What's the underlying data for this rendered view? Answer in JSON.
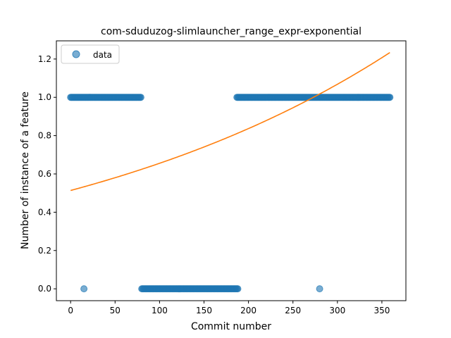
{
  "chart_data": {
    "type": "scatter",
    "title": "com-sduduzog-slimlauncher_range_expr-exponential",
    "xlabel": "Commit number",
    "ylabel": "Number of instance of a feature",
    "xlim": [
      -16,
      377
    ],
    "ylim": [
      -0.062,
      1.295
    ],
    "xticks": [
      0,
      50,
      100,
      150,
      200,
      250,
      300,
      350
    ],
    "yticks": [
      0.0,
      0.2,
      0.4,
      0.6,
      0.8,
      1.0,
      1.2
    ],
    "xtick_labels": [
      "0",
      "50",
      "100",
      "150",
      "200",
      "250",
      "300",
      "350"
    ],
    "ytick_labels": [
      "0.0",
      "0.2",
      "0.4",
      "0.6",
      "0.8",
      "1.0",
      "1.2"
    ],
    "grid": false,
    "legend": {
      "position": "top-left",
      "entries": [
        "data"
      ]
    },
    "colors": {
      "data": "#1f77b4",
      "fit": "#ff7f0e"
    },
    "series": [
      {
        "name": "data",
        "kind": "points",
        "segments": [
          {
            "x_start": 0,
            "x_end": 79,
            "y": 1.0
          },
          {
            "x_start": 80,
            "x_end": 188,
            "y": 0.0
          },
          {
            "x_start": 187,
            "x_end": 359,
            "y": 1.0
          }
        ],
        "points": [
          {
            "x": 15,
            "y": 0.0
          },
          {
            "x": 280,
            "y": 0.0
          }
        ]
      },
      {
        "name": "fit",
        "kind": "line",
        "model": {
          "type": "exponential",
          "a": 0.5135,
          "b": 0.002442,
          "c": 0
        },
        "x_range": [
          0,
          359
        ]
      }
    ]
  }
}
